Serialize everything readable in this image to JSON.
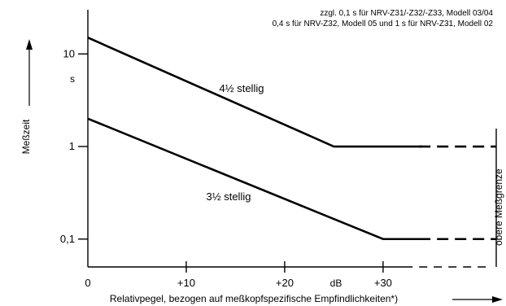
{
  "chart_data": {
    "type": "line",
    "title": "",
    "notes": [
      "zzgl. 0,1 s für NRV-Z31/-Z32/-Z33, Modell 03/04",
      "0,4 s für NRV-Z32, Modell 05 und 1 s für NRV-Z31, Modell 02"
    ],
    "xlabel": "Relativpegel, bezogen auf meßkopfspezifische Empfindlichkeiten*)",
    "ylabel": "Meßzeit",
    "yunit": "s",
    "xunit": "dB",
    "y_scale": "log",
    "xlim": [
      0,
      41.5
    ],
    "ylim": [
      0.05,
      30
    ],
    "x_ticks": [
      {
        "value": 0,
        "label": "0"
      },
      {
        "value": 10,
        "label": "+10"
      },
      {
        "value": 20,
        "label": "+20"
      },
      {
        "value": 30,
        "label": "+30"
      }
    ],
    "y_ticks": [
      {
        "value": 10,
        "label": "10"
      },
      {
        "value": 1,
        "label": "1"
      },
      {
        "value": 0.1,
        "label": "0,1"
      }
    ],
    "right_label": "obere Meßgrenze",
    "grid": false,
    "series": [
      {
        "name": "4½ stellig",
        "x": [
          0,
          25,
          34
        ],
        "y": [
          15,
          1,
          1
        ],
        "dashed_from": 33,
        "end_x": 41.5
      },
      {
        "name": "3½ stellig",
        "x": [
          0,
          30,
          34
        ],
        "y": [
          2,
          0.1,
          0.1
        ],
        "dashed_from": 33,
        "end_x": 41.5
      }
    ]
  }
}
